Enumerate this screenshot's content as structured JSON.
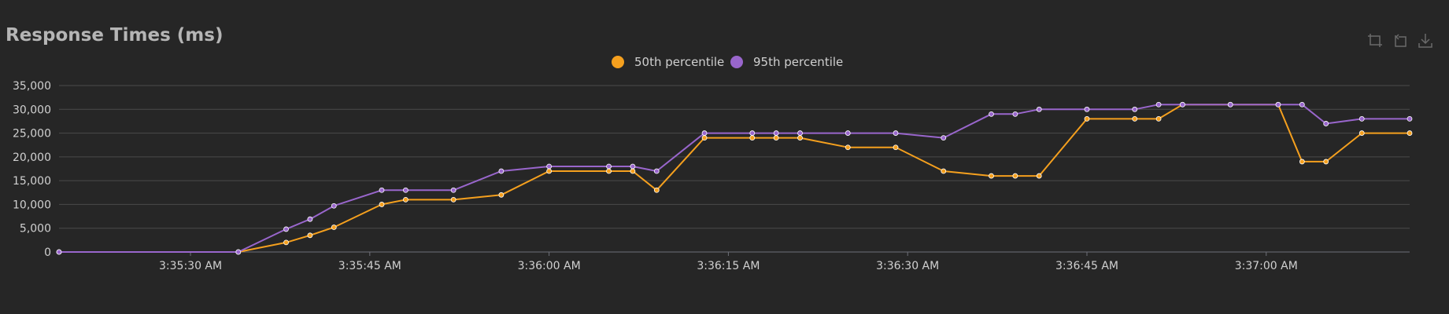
{
  "chart_title": "Response Times (ms)",
  "toolbox": [
    "crop-icon",
    "restore-icon",
    "download-icon"
  ],
  "colors": {
    "p50": "#f5a01e",
    "p95": "#9966cc",
    "axis": "#6e7079",
    "grid": "#4a4a4a",
    "label": "#d0d0d0"
  },
  "chart_data": {
    "type": "line",
    "title": "Response Times (ms)",
    "legend_position": "top-center",
    "grid": true,
    "x_axis": {
      "type": "time",
      "min": "3:35:19 AM",
      "max": "3:37:12 AM",
      "ticks": [
        "3:35:30 AM",
        "3:35:45 AM",
        "3:36:00 AM",
        "3:36:15 AM",
        "3:36:30 AM",
        "3:36:45 AM",
        "3:37:00 AM"
      ]
    },
    "y_axis": {
      "min": 0,
      "max": 35000,
      "ticks": [
        "0",
        "5,000",
        "10,000",
        "15,000",
        "20,000",
        "25,000",
        "30,000",
        "35,000"
      ]
    },
    "x": [
      "3:35:19",
      "3:35:34",
      "3:35:38",
      "3:35:40",
      "3:35:42",
      "3:35:46",
      "3:35:48",
      "3:35:52",
      "3:35:56",
      "3:36:00",
      "3:36:05",
      "3:36:07",
      "3:36:09",
      "3:36:13",
      "3:36:17",
      "3:36:19",
      "3:36:21",
      "3:36:25",
      "3:36:29",
      "3:36:33",
      "3:36:37",
      "3:36:39",
      "3:36:41",
      "3:36:45",
      "3:36:49",
      "3:36:51",
      "3:36:53",
      "3:36:57",
      "3:37:01",
      "3:37:03",
      "3:37:05",
      "3:37:08",
      "3:37:12"
    ],
    "series": [
      {
        "name": "50th percentile",
        "values": [
          0,
          0,
          2000,
          3500,
          5200,
          10000,
          11000,
          11000,
          12000,
          17000,
          17000,
          17000,
          13000,
          24000,
          24000,
          24000,
          24000,
          22000,
          22000,
          17000,
          16000,
          16000,
          16000,
          28000,
          28000,
          28000,
          31000,
          31000,
          31000,
          19000,
          19000,
          25000,
          25000
        ]
      },
      {
        "name": "95th percentile",
        "values": [
          0,
          0,
          4800,
          6900,
          9700,
          13000,
          13000,
          13000,
          17000,
          18000,
          18000,
          18000,
          17000,
          25000,
          25000,
          25000,
          25000,
          25000,
          25000,
          24000,
          29000,
          29000,
          30000,
          30000,
          30000,
          31000,
          31000,
          31000,
          31000,
          31000,
          27000,
          28000,
          28000
        ]
      }
    ]
  }
}
